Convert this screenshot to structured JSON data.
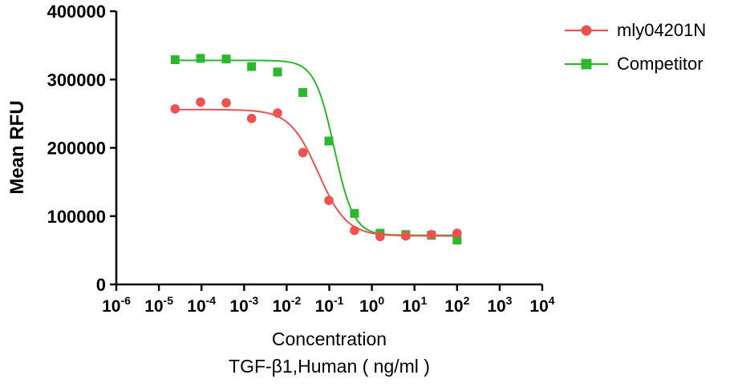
{
  "chart_data": {
    "type": "line",
    "title": "",
    "ylabel": "Mean RFU",
    "xlabel_line1": "Concentration",
    "xlabel_line2": "TGF-β1,Human ( ng/ml )",
    "x_scale": "log10",
    "xlim_log_exponents": [
      -6,
      4
    ],
    "x_tick_base": "10",
    "x_tick_exponents": [
      -6,
      -5,
      -4,
      -3,
      -2,
      -1,
      0,
      1,
      2,
      3,
      4
    ],
    "ylim": [
      0,
      400000
    ],
    "y_ticks": [
      0,
      100000,
      200000,
      300000,
      400000
    ],
    "grid": false,
    "legend_position": "top-right",
    "axis_color": "#000000",
    "series": [
      {
        "name": "mly04201N",
        "color": "#ee5152",
        "marker": "circle",
        "x": [
          2.4e-05,
          9.5e-05,
          0.00038,
          0.0015,
          0.0061,
          0.024,
          0.098,
          0.39,
          1.56,
          6.25,
          25,
          100
        ],
        "y": [
          257000,
          267000,
          266000,
          243000,
          251000,
          193000,
          123000,
          79000,
          70000,
          71000,
          73000,
          75000
        ],
        "fit_4pl": {
          "top": 256000,
          "bottom": 71000,
          "ic50": 0.055,
          "hill": 1.3
        }
      },
      {
        "name": "Competitor",
        "color": "#2cb72c",
        "marker": "square",
        "x": [
          2.4e-05,
          9.5e-05,
          0.00038,
          0.0015,
          0.0061,
          0.024,
          0.098,
          0.39,
          1.56,
          6.25,
          25,
          100
        ],
        "y": [
          329000,
          331000,
          330000,
          319000,
          311000,
          281000,
          210000,
          104000,
          75000,
          73000,
          72000,
          65000
        ],
        "fit_4pl": {
          "top": 328000,
          "bottom": 72000,
          "ic50": 0.13,
          "hill": 1.9
        }
      }
    ]
  }
}
